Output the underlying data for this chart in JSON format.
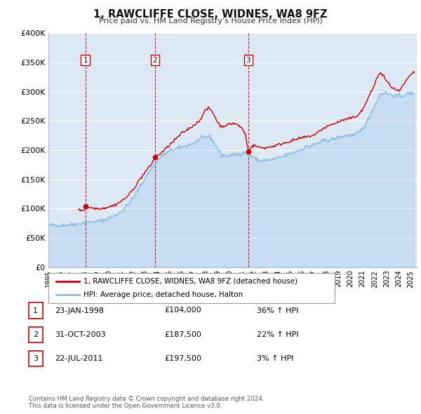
{
  "title": "1, RAWCLIFFE CLOSE, WIDNES, WA8 9FZ",
  "subtitle": "Price paid vs. HM Land Registry's House Price Index (HPI)",
  "xlim_start": 1995.0,
  "xlim_end": 2025.5,
  "ylim_min": 0,
  "ylim_max": 400000,
  "yticks": [
    0,
    50000,
    100000,
    150000,
    200000,
    250000,
    300000,
    350000,
    400000
  ],
  "ytick_labels": [
    "£0",
    "£50K",
    "£100K",
    "£150K",
    "£200K",
    "£250K",
    "£300K",
    "£350K",
    "£400K"
  ],
  "xtick_years": [
    1995,
    1996,
    1997,
    1998,
    1999,
    2000,
    2001,
    2002,
    2003,
    2004,
    2005,
    2006,
    2007,
    2008,
    2009,
    2010,
    2011,
    2012,
    2013,
    2014,
    2015,
    2016,
    2017,
    2018,
    2019,
    2020,
    2021,
    2022,
    2023,
    2024,
    2025
  ],
  "background_color": "#ffffff",
  "plot_bg_color": "#dce9f5",
  "grid_color": "#ffffff",
  "hpi_line_color": "#8bbde8",
  "price_line_color": "#cc0000",
  "vline_color": "#cc0000",
  "sale_marker_color": "#cc0000",
  "legend_border_color": "#aaaaaa",
  "purchases": [
    {
      "date_num": 1998.06,
      "price": 104000,
      "label": "1"
    },
    {
      "date_num": 2003.83,
      "price": 187500,
      "label": "2"
    },
    {
      "date_num": 2011.55,
      "price": 197500,
      "label": "3"
    }
  ],
  "table_entries": [
    {
      "num": "1",
      "date": "23-JAN-1998",
      "price": "£104,000",
      "hpi_pct": "36% ↑ HPI"
    },
    {
      "num": "2",
      "date": "31-OCT-2003",
      "price": "£187,500",
      "hpi_pct": "22% ↑ HPI"
    },
    {
      "num": "3",
      "date": "22-JUL-2011",
      "price": "£197,500",
      "hpi_pct": "3% ↑ HPI"
    }
  ],
  "footer_text": "Contains HM Land Registry data © Crown copyright and database right 2024.\nThis data is licensed under the Open Government Licence v3.0.",
  "legend_label_price": "1, RAWCLIFFE CLOSE, WIDNES, WA8 9FZ (detached house)",
  "legend_label_hpi": "HPI: Average price, detached house, Halton",
  "hpi_anchors": [
    [
      1995.0,
      72000
    ],
    [
      1995.5,
      71000
    ],
    [
      1996.0,
      71500
    ],
    [
      1996.5,
      72000
    ],
    [
      1997.0,
      73000
    ],
    [
      1997.5,
      74000
    ],
    [
      1998.0,
      76000
    ],
    [
      1998.5,
      77000
    ],
    [
      1999.0,
      78000
    ],
    [
      1999.5,
      80000
    ],
    [
      2000.0,
      84000
    ],
    [
      2000.5,
      88000
    ],
    [
      2001.0,
      95000
    ],
    [
      2001.5,
      105000
    ],
    [
      2002.0,
      118000
    ],
    [
      2002.5,
      135000
    ],
    [
      2003.0,
      152000
    ],
    [
      2003.5,
      168000
    ],
    [
      2004.0,
      182000
    ],
    [
      2004.5,
      192000
    ],
    [
      2005.0,
      198000
    ],
    [
      2005.5,
      202000
    ],
    [
      2006.0,
      205000
    ],
    [
      2006.5,
      208000
    ],
    [
      2007.0,
      212000
    ],
    [
      2007.5,
      218000
    ],
    [
      2008.0,
      222000
    ],
    [
      2008.3,
      224000
    ],
    [
      2008.8,
      210000
    ],
    [
      2009.3,
      192000
    ],
    [
      2009.8,
      190000
    ],
    [
      2010.3,
      192000
    ],
    [
      2010.8,
      194000
    ],
    [
      2011.3,
      196000
    ],
    [
      2011.8,
      190000
    ],
    [
      2012.3,
      183000
    ],
    [
      2012.8,
      182000
    ],
    [
      2013.3,
      183000
    ],
    [
      2013.8,
      185000
    ],
    [
      2014.3,
      188000
    ],
    [
      2014.8,
      192000
    ],
    [
      2015.3,
      196000
    ],
    [
      2015.8,
      200000
    ],
    [
      2016.3,
      205000
    ],
    [
      2016.8,
      208000
    ],
    [
      2017.3,
      212000
    ],
    [
      2017.8,
      216000
    ],
    [
      2018.3,
      218000
    ],
    [
      2018.8,
      220000
    ],
    [
      2019.3,
      223000
    ],
    [
      2019.8,
      226000
    ],
    [
      2020.3,
      225000
    ],
    [
      2020.8,
      232000
    ],
    [
      2021.3,
      245000
    ],
    [
      2021.8,
      268000
    ],
    [
      2022.3,
      288000
    ],
    [
      2022.5,
      296000
    ],
    [
      2022.8,
      298000
    ],
    [
      2023.3,
      295000
    ],
    [
      2023.8,
      292000
    ],
    [
      2024.3,
      293000
    ],
    [
      2024.8,
      296000
    ],
    [
      2025.2,
      298000
    ]
  ],
  "price_anchors": [
    [
      1997.5,
      97000
    ],
    [
      1997.8,
      97500
    ],
    [
      1998.0,
      98000
    ],
    [
      1998.06,
      104000
    ],
    [
      1998.3,
      103000
    ],
    [
      1998.6,
      101000
    ],
    [
      1999.0,
      100000
    ],
    [
      1999.5,
      100500
    ],
    [
      2000.0,
      103000
    ],
    [
      2000.5,
      106000
    ],
    [
      2001.0,
      112000
    ],
    [
      2001.5,
      120000
    ],
    [
      2002.0,
      132000
    ],
    [
      2002.5,
      148000
    ],
    [
      2003.0,
      162000
    ],
    [
      2003.5,
      175000
    ],
    [
      2003.83,
      187500
    ],
    [
      2004.0,
      190000
    ],
    [
      2004.5,
      198000
    ],
    [
      2005.0,
      208000
    ],
    [
      2005.5,
      218000
    ],
    [
      2006.0,
      228000
    ],
    [
      2006.5,
      235000
    ],
    [
      2007.0,
      242000
    ],
    [
      2007.5,
      250000
    ],
    [
      2008.0,
      268000
    ],
    [
      2008.3,
      272000
    ],
    [
      2008.6,
      265000
    ],
    [
      2009.0,
      248000
    ],
    [
      2009.3,
      240000
    ],
    [
      2009.6,
      242000
    ],
    [
      2010.0,
      244000
    ],
    [
      2010.3,
      246000
    ],
    [
      2010.6,
      244000
    ],
    [
      2011.0,
      238000
    ],
    [
      2011.3,
      228000
    ],
    [
      2011.55,
      197500
    ],
    [
      2011.8,
      205000
    ],
    [
      2012.0,
      208000
    ],
    [
      2012.3,
      206000
    ],
    [
      2012.6,
      204000
    ],
    [
      2013.0,
      204000
    ],
    [
      2013.5,
      206000
    ],
    [
      2014.0,
      209000
    ],
    [
      2014.5,
      212000
    ],
    [
      2015.0,
      215000
    ],
    [
      2015.5,
      218000
    ],
    [
      2016.0,
      221000
    ],
    [
      2016.5,
      223000
    ],
    [
      2017.0,
      226000
    ],
    [
      2017.3,
      230000
    ],
    [
      2017.6,
      235000
    ],
    [
      2018.0,
      240000
    ],
    [
      2018.5,
      244000
    ],
    [
      2019.0,
      248000
    ],
    [
      2019.5,
      252000
    ],
    [
      2020.0,
      254000
    ],
    [
      2020.5,
      258000
    ],
    [
      2021.0,
      268000
    ],
    [
      2021.5,
      290000
    ],
    [
      2022.0,
      312000
    ],
    [
      2022.3,
      328000
    ],
    [
      2022.5,
      332000
    ],
    [
      2022.8,
      325000
    ],
    [
      2023.0,
      318000
    ],
    [
      2023.3,
      310000
    ],
    [
      2023.6,
      305000
    ],
    [
      2024.0,
      300000
    ],
    [
      2024.3,
      308000
    ],
    [
      2024.6,
      318000
    ],
    [
      2025.0,
      328000
    ],
    [
      2025.2,
      333000
    ]
  ]
}
